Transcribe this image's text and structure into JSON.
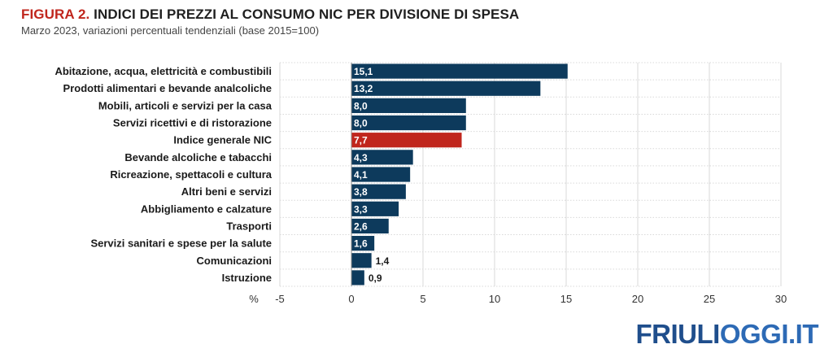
{
  "header": {
    "figure_label": "FIGURA 2.",
    "title": "INDICI DEI PREZZI AL CONSUMO NIC PER DIVISIONE DI SPESA",
    "subtitle": "Marzo 2023, variazioni percentuali tendenziali (base 2015=100)"
  },
  "logo": {
    "part1": "FRIULI",
    "part2": "OGGI.IT",
    "color1": "#1f4e8c",
    "color2": "#2d6ab5"
  },
  "chart_data": {
    "type": "bar",
    "orientation": "horizontal",
    "title": "INDICI DEI PREZZI AL CONSUMO NIC PER DIVISIONE DI SPESA",
    "subtitle": "Marzo 2023, variazioni percentuali tendenziali (base 2015=100)",
    "xlabel": "%",
    "xlim": [
      -5,
      30
    ],
    "xticks": [
      -5,
      0,
      5,
      10,
      15,
      20,
      25,
      30
    ],
    "grid": true,
    "categories": [
      "Abitazione, acqua, elettricità e combustibili",
      "Prodotti alimentari e bevande analcoliche",
      "Mobili, articoli e servizi per la casa",
      "Servizi ricettivi e di ristorazione",
      "Indice generale NIC",
      "Bevande alcoliche e tabacchi",
      "Ricreazione, spettacoli e cultura",
      "Altri beni e servizi",
      "Abbigliamento e calzature",
      "Trasporti",
      "Servizi sanitari e spese per la salute",
      "Comunicazioni",
      "Istruzione"
    ],
    "values": [
      15.1,
      13.2,
      8.0,
      8.0,
      7.7,
      4.3,
      4.1,
      3.8,
      3.3,
      2.6,
      1.6,
      1.4,
      0.9
    ],
    "value_labels": [
      "15,1",
      "13,2",
      "8,0",
      "8,0",
      "7,7",
      "4,3",
      "4,1",
      "3,8",
      "3,3",
      "2,6",
      "1,6",
      "1,4",
      "0,9"
    ],
    "tick_labels": [
      "-5",
      "0",
      "5",
      "10",
      "15",
      "20",
      "25",
      "30"
    ],
    "highlight_index": 4,
    "colors": {
      "bar": "#0d3a5c",
      "highlight": "#c0261d",
      "grid": "#d9d9d9"
    }
  }
}
